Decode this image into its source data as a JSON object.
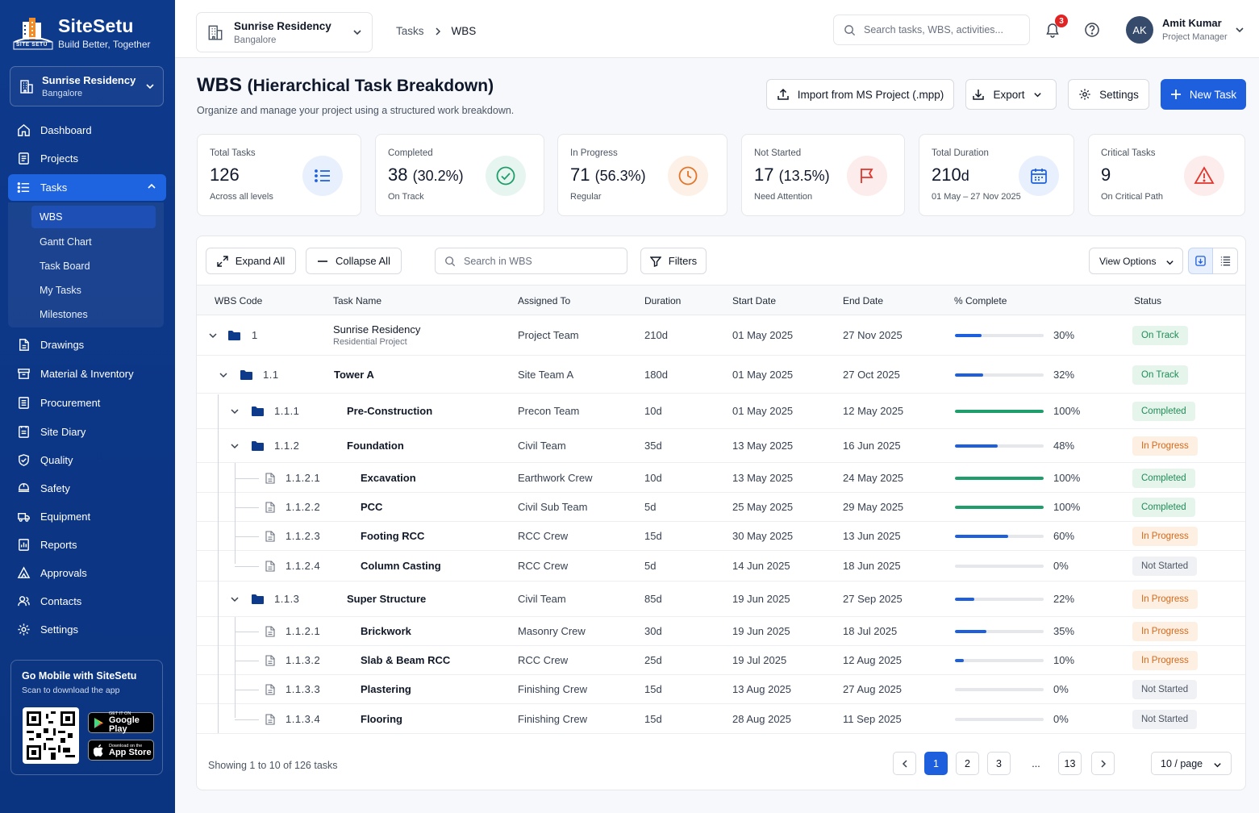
{
  "brand": {
    "name": "SiteSetu",
    "tagline": "Build Better, Together",
    "logo_text": "SITE SETU"
  },
  "project": {
    "name": "Sunrise Residency",
    "city": "Bangalore"
  },
  "sidebar": {
    "items": [
      {
        "label": "Dashboard",
        "icon": "home-icon"
      },
      {
        "label": "Projects",
        "icon": "projects-icon"
      },
      {
        "label": "Tasks",
        "icon": "tasks-icon"
      },
      {
        "label": "Drawings",
        "icon": "drawings-icon"
      },
      {
        "label": "Material & Inventory",
        "icon": "inventory-icon"
      },
      {
        "label": "Procurement",
        "icon": "procurement-icon"
      },
      {
        "label": "Site Diary",
        "icon": "diary-icon"
      },
      {
        "label": "Quality",
        "icon": "shield-icon"
      },
      {
        "label": "Safety",
        "icon": "safety-icon"
      },
      {
        "label": "Equipment",
        "icon": "truck-icon"
      },
      {
        "label": "Reports",
        "icon": "reports-icon"
      },
      {
        "label": "Approvals",
        "icon": "approvals-icon"
      },
      {
        "label": "Contacts",
        "icon": "contacts-icon"
      },
      {
        "label": "Settings",
        "icon": "gear-icon"
      }
    ],
    "sub_items": [
      "WBS",
      "Gantt Chart",
      "Task Board",
      "My Tasks",
      "Milestones"
    ],
    "mobile": {
      "title": "Go Mobile with SiteSetu",
      "subtitle": "Scan to download the app",
      "google_small": "GET IT ON",
      "google_big": "Google Play",
      "apple_small": "Download on the",
      "apple_big": "App Store"
    }
  },
  "topbar": {
    "breadcrumb": [
      "Tasks",
      "WBS"
    ],
    "search_placeholder": "Search tasks, WBS, activities...",
    "notif_count": "3",
    "user": {
      "initials": "AK",
      "name": "Amit Kumar",
      "role": "Project Manager"
    }
  },
  "header": {
    "title": "WBS",
    "title_sub": "(Hierarchical Task Breakdown)",
    "subtitle": "Organize and manage your project using a structured work breakdown.",
    "buttons": {
      "import": "Import from MS Project (.mpp)",
      "export": "Export",
      "settings": "Settings",
      "new_task": "New Task"
    }
  },
  "stats": [
    {
      "label": "Total Tasks",
      "value": "126",
      "pct": "",
      "caption": "Across all levels",
      "icon": "list-icon"
    },
    {
      "label": "Completed",
      "value": "38",
      "pct": "(30.2%)",
      "caption": "On Track",
      "icon": "check-circle-icon"
    },
    {
      "label": "In Progress",
      "value": "71",
      "pct": "(56.3%)",
      "caption": "Regular",
      "icon": "clock-icon"
    },
    {
      "label": "Not Started",
      "value": "17",
      "pct": "(13.5%)",
      "caption": "Need Attention",
      "icon": "flag-icon"
    },
    {
      "label": "Total Duration",
      "value": "210",
      "pct": "d",
      "caption": "01 May – 27 Nov 2025",
      "icon": "calendar-icon"
    },
    {
      "label": "Critical Tasks",
      "value": "9",
      "pct": "",
      "caption": "On Critical Path",
      "icon": "warning-icon"
    }
  ],
  "toolbar": {
    "expand": "Expand All",
    "collapse": "Collapse All",
    "search_placeholder": "Search in WBS",
    "filters": "Filters",
    "view_options": "View Options"
  },
  "table": {
    "columns": [
      "WBS Code",
      "Task Name",
      "Assigned To",
      "Duration",
      "Start Date",
      "End Date",
      "% Complete",
      "Status"
    ],
    "rows": [
      {
        "code": "1",
        "name": "Sunrise Residency",
        "sub": "Residential Project",
        "assigned": "Project Team",
        "duration": "210d",
        "start": "01 May 2025",
        "end": "27 Nov 2025",
        "pct": 30,
        "pct_label": "30%",
        "status": "On Track",
        "level": 0,
        "type": "folder"
      },
      {
        "code": "1.1",
        "name": "Tower A",
        "sub": "",
        "assigned": "Site Team A",
        "duration": "180d",
        "start": "01 May 2025",
        "end": "27 Oct 2025",
        "pct": 32,
        "pct_label": "32%",
        "status": "On Track",
        "level": 1,
        "type": "folder"
      },
      {
        "code": "1.1.1",
        "name": "Pre-Construction",
        "sub": "",
        "assigned": "Precon Team",
        "duration": "10d",
        "start": "01 May 2025",
        "end": "12 May 2025",
        "pct": 100,
        "pct_label": "100%",
        "status": "Completed",
        "level": 2,
        "type": "folder"
      },
      {
        "code": "1.1.2",
        "name": "Foundation",
        "sub": "",
        "assigned": "Civil Team",
        "duration": "35d",
        "start": "13 May 2025",
        "end": "16 Jun 2025",
        "pct": 48,
        "pct_label": "48%",
        "status": "In Progress",
        "level": 2,
        "type": "folder"
      },
      {
        "code": "1.1.2.1",
        "name": "Excavation",
        "sub": "",
        "assigned": "Earthwork Crew",
        "duration": "10d",
        "start": "13 May 2025",
        "end": "24 May 2025",
        "pct": 100,
        "pct_label": "100%",
        "status": "Completed",
        "level": 3,
        "type": "file"
      },
      {
        "code": "1.1.2.2",
        "name": "PCC",
        "sub": "",
        "assigned": "Civil Sub Team",
        "duration": "5d",
        "start": "25 May 2025",
        "end": "29 May 2025",
        "pct": 100,
        "pct_label": "100%",
        "status": "Completed",
        "level": 3,
        "type": "file"
      },
      {
        "code": "1.1.2.3",
        "name": "Footing RCC",
        "sub": "",
        "assigned": "RCC Crew",
        "duration": "15d",
        "start": "30 May 2025",
        "end": "13 Jun 2025",
        "pct": 60,
        "pct_label": "60%",
        "status": "In Progress",
        "level": 3,
        "type": "file"
      },
      {
        "code": "1.1.2.4",
        "name": "Column Casting",
        "sub": "",
        "assigned": "RCC Crew",
        "duration": "5d",
        "start": "14 Jun 2025",
        "end": "18 Jun 2025",
        "pct": 0,
        "pct_label": "0%",
        "status": "Not Started",
        "level": 3,
        "type": "file"
      },
      {
        "code": "1.1.3",
        "name": "Super Structure",
        "sub": "",
        "assigned": "Civil Team",
        "duration": "85d",
        "start": "19 Jun 2025",
        "end": "27 Sep 2025",
        "pct": 22,
        "pct_label": "22%",
        "status": "In Progress",
        "level": 2,
        "type": "folder"
      },
      {
        "code": "1.1.2.1",
        "name": "Brickwork",
        "sub": "",
        "assigned": "Masonry Crew",
        "duration": "30d",
        "start": "19 Jun 2025",
        "end": "18 Jul 2025",
        "pct": 35,
        "pct_label": "35%",
        "status": "In Progress",
        "level": 3,
        "type": "file"
      },
      {
        "code": "1.1.3.2",
        "name": "Slab & Beam RCC",
        "sub": "",
        "assigned": "RCC Crew",
        "duration": "25d",
        "start": "19 Jul 2025",
        "end": "12 Aug 2025",
        "pct": 10,
        "pct_label": "10%",
        "status": "In Progress",
        "level": 3,
        "type": "file"
      },
      {
        "code": "1.1.3.3",
        "name": "Plastering",
        "sub": "",
        "assigned": "Finishing Crew",
        "duration": "15d",
        "start": "13 Aug 2025",
        "end": "27 Aug 2025",
        "pct": 0,
        "pct_label": "0%",
        "status": "Not Started",
        "level": 3,
        "type": "file"
      },
      {
        "code": "1.1.3.4",
        "name": "Flooring",
        "sub": "",
        "assigned": "Finishing Crew",
        "duration": "15d",
        "start": "28 Aug 2025",
        "end": "11 Sep 2025",
        "pct": 0,
        "pct_label": "0%",
        "status": "Not Started",
        "level": 3,
        "type": "file"
      }
    ]
  },
  "footer": {
    "showing": "Showing 1 to 10 of 126 tasks",
    "pages": [
      "1",
      "2",
      "3",
      "...",
      "13"
    ],
    "per_page": "10 / page"
  },
  "colors": {
    "accent": "#1d5fdc",
    "green": "#1f9d6b",
    "blue": "#1d5fdc",
    "orange": "#e2762a",
    "red": "#e0362b"
  }
}
